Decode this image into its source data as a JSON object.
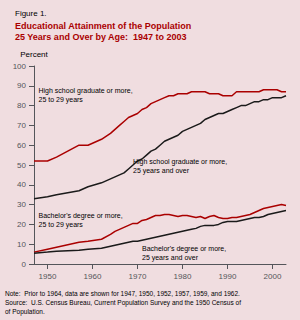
{
  "chart_data": {
    "type": "line",
    "title": "Figure 1.",
    "subtitle": "Educational Attainment of the Population\n25 Years and Over by Age:  1947 to 2003",
    "ylabel": "Percent",
    "note": "Note:  Prior to 1964, data are shown for 1947, 1950, 1952, 1957, 1959, and 1962.\nSource:  U.S. Census Bureau, Current Population Survey and the 1950 Census of\nof Population.",
    "x": [
      1947,
      1950,
      1952,
      1957,
      1959,
      1962,
      1964,
      1965,
      1966,
      1967,
      1968,
      1969,
      1970,
      1971,
      1972,
      1973,
      1974,
      1975,
      1976,
      1977,
      1978,
      1979,
      1980,
      1981,
      1982,
      1983,
      1984,
      1985,
      1986,
      1987,
      1988,
      1989,
      1990,
      1991,
      1992,
      1993,
      1994,
      1995,
      1996,
      1997,
      1998,
      1999,
      2000,
      2001,
      2002,
      2003
    ],
    "series": [
      {
        "color": "#aa0000",
        "values": [
          52,
          52,
          54,
          60,
          60,
          63,
          66,
          68,
          70,
          72,
          74,
          75,
          76,
          78,
          79,
          81,
          82,
          83,
          84,
          85,
          85,
          86,
          86,
          86,
          87,
          87,
          87,
          87,
          86,
          86,
          86,
          85,
          85,
          85,
          87,
          87,
          87,
          87,
          87,
          87,
          88,
          88,
          88,
          88,
          87,
          87
        ]
      },
      {
        "color": "#1a1a1a",
        "values": [
          33,
          34,
          35,
          37,
          39,
          41,
          43,
          44,
          45,
          46,
          48,
          50,
          52,
          53,
          55,
          57,
          58,
          60,
          62,
          63,
          64,
          65,
          67,
          68,
          69,
          70,
          71,
          73,
          74,
          75,
          76,
          76,
          77,
          78,
          79,
          80,
          80,
          81,
          82,
          82,
          83,
          83,
          84,
          84,
          84,
          85
        ]
      },
      {
        "color": "#aa0000",
        "values": [
          6.0,
          7.5,
          8.5,
          11.0,
          11.5,
          12.5,
          15.0,
          16.5,
          17.5,
          18.5,
          19.5,
          20.5,
          20.5,
          22.0,
          22.5,
          23.5,
          24.5,
          24.5,
          25.0,
          25.0,
          24.5,
          24.0,
          24.5,
          24.5,
          24.0,
          23.5,
          24.0,
          23.0,
          24.0,
          24.5,
          23.5,
          23.0,
          23.0,
          23.5,
          23.5,
          24.0,
          24.5,
          25.0,
          26.0,
          27.0,
          28.0,
          28.5,
          29.0,
          29.5,
          30.0,
          29.5
        ]
      },
      {
        "color": "#1a1a1a",
        "values": [
          5.4,
          6.0,
          6.5,
          7.0,
          7.5,
          8.0,
          9.0,
          9.5,
          10.0,
          10.5,
          11.0,
          11.5,
          11.5,
          12.0,
          12.5,
          13.0,
          13.5,
          14.0,
          14.5,
          15.0,
          15.5,
          16.0,
          16.5,
          17.0,
          17.5,
          18.0,
          19.0,
          19.5,
          19.5,
          19.5,
          20.0,
          21.0,
          21.5,
          21.5,
          21.5,
          22.0,
          22.5,
          23.0,
          23.5,
          23.5,
          24.0,
          25.0,
          25.5,
          26.0,
          26.5,
          27.0
        ]
      }
    ],
    "annotations": [
      {
        "text": "High school graduate or more,\n25 to 29 years",
        "x": 1948,
        "y": 90
      },
      {
        "text": "High school graduate or more,\n25 years and over",
        "x": 1969,
        "y": 54
      },
      {
        "text": "Bachelor's degree or more,\n25 to 29 years",
        "x": 1948,
        "y": 27
      },
      {
        "text": "Bachelor's degree or more,\n25 years and over",
        "x": 1971,
        "y": 10
      }
    ],
    "xlim": [
      1947,
      2003
    ],
    "xticks": [
      1950,
      1960,
      1970,
      1980,
      1990,
      2000
    ],
    "ylim": [
      0,
      100
    ],
    "yticks": [
      0,
      10,
      20,
      30,
      40,
      50,
      60,
      70,
      80,
      90,
      100
    ],
    "grid": false
  }
}
